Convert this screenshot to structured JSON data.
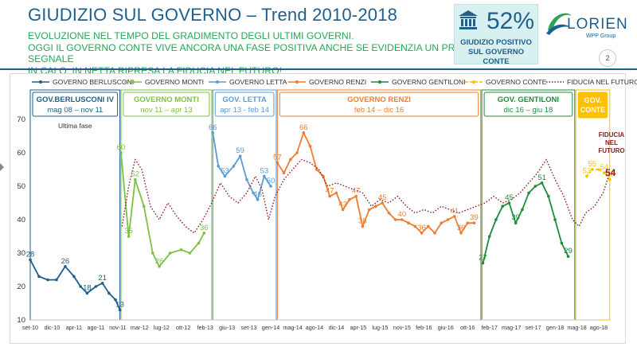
{
  "header": {
    "title": "GIUDIZIO SUL GOVERNO – Trend 2010-2018",
    "subtitle_lines": [
      "EVOLUZIONE NEL TEMPO DEL GRADIMENTO DEGLI ULTIMI GOVERNI.",
      "OGGI IL GOVERNO CONTE VIVE ANCORA UNA FASE POSITIVA ANCHE SE EVIDENZIA UN PRIMO SEGNALE",
      "IN CALO.  IN NETTA RIPRESA LA FIDUCIA NEL FUTURO!"
    ]
  },
  "badge": {
    "percent": "52%",
    "label_line1": "GIUDIZIO POSITIVO",
    "label_line2": "SUL GOVERNO CONTE",
    "icon": "government-building-icon"
  },
  "logo": {
    "name": "LORIEN",
    "group": "WPP Group"
  },
  "page_number": "2",
  "colors": {
    "berlusconi": "#1f5f8b",
    "monti": "#7dc242",
    "letta": "#5b9bd5",
    "renzi": "#ed7d31",
    "gentiloni": "#1e8c3a",
    "conte": "#ffc000",
    "fiducia": "#8b1a1a",
    "title": "#1f5f8b",
    "subtitle": "#2aa556"
  },
  "chart_data": {
    "type": "line",
    "title": "",
    "ylim": [
      10,
      70
    ],
    "yticks": [
      10,
      20,
      30,
      40,
      50,
      60,
      70
    ],
    "xticks": [
      "set-10",
      "dic-10",
      "apr-11",
      "ago-11",
      "nov-11",
      "mar-12",
      "lug-12",
      "ott-12",
      "feb-13",
      "giu-13",
      "set-13",
      "gen-14",
      "mag-14",
      "ago-14",
      "dic-14",
      "apr-15",
      "lug-15",
      "nov-15",
      "feb-16",
      "giu-16",
      "ott-16",
      "feb-17",
      "mag-17",
      "set-17",
      "gen-18",
      "mag-18",
      "ago-18"
    ],
    "legend": [
      {
        "key": "berlusconi",
        "label": "GOVERNO BERLUSCONI",
        "style": "solid"
      },
      {
        "key": "monti",
        "label": "GOVERNO MONTI",
        "style": "solid"
      },
      {
        "key": "letta",
        "label": "GOVERNO LETTA",
        "style": "solid"
      },
      {
        "key": "renzi",
        "label": "GOVERNO RENZI",
        "style": "solid"
      },
      {
        "key": "gentiloni",
        "label": "GOVERNO GENTILONI",
        "style": "solid"
      },
      {
        "key": "conte",
        "label": "GOVERNO CONTE",
        "style": "dashed"
      },
      {
        "key": "fiducia",
        "label": "FIDUCIA NEL FUTURO",
        "style": "dotted"
      }
    ],
    "periods": [
      {
        "key": "berlusconi",
        "name": "GOV.BERLUSCONI IV",
        "dates": "mag 08 – nov 11",
        "note": "Ultima fase",
        "x": [
          0,
          4.1
        ]
      },
      {
        "key": "monti",
        "name": "GOVERNO MONTI",
        "dates": "nov 11 – apr 13",
        "x": [
          4.15,
          8.3
        ]
      },
      {
        "key": "letta",
        "name": "GOV. LETTA",
        "dates": "apr 13 - feb 14",
        "x": [
          8.35,
          11.25
        ]
      },
      {
        "key": "renzi",
        "name": "GOVERNO RENZI",
        "dates": "feb 14 – dic 16",
        "x": [
          11.3,
          20.6
        ]
      },
      {
        "key": "gentiloni",
        "name": "GOV. GENTILONI",
        "dates": "dic 16 – giu 18",
        "x": [
          20.65,
          24.9
        ]
      },
      {
        "key": "conte",
        "name": "GOV. CONTE",
        "dates": "",
        "x": [
          24.95,
          26.5
        ]
      }
    ],
    "series": [
      {
        "key": "berlusconi",
        "values": [
          [
            0,
            28
          ],
          [
            0.4,
            23
          ],
          [
            0.8,
            22
          ],
          [
            1.2,
            22
          ],
          [
            1.6,
            26
          ],
          [
            2.0,
            23
          ],
          [
            2.3,
            20
          ],
          [
            2.6,
            18
          ],
          [
            3.0,
            20
          ],
          [
            3.3,
            21
          ],
          [
            3.6,
            18
          ],
          [
            3.9,
            16
          ],
          [
            4.1,
            13
          ]
        ]
      },
      {
        "key": "monti",
        "values": [
          [
            4.15,
            60
          ],
          [
            4.5,
            35
          ],
          [
            4.8,
            52
          ],
          [
            5.2,
            44
          ],
          [
            5.6,
            30
          ],
          [
            5.9,
            26
          ],
          [
            6.4,
            30
          ],
          [
            6.9,
            31
          ],
          [
            7.3,
            30
          ],
          [
            7.7,
            33
          ],
          [
            7.95,
            36
          ]
        ]
      },
      {
        "key": "letta",
        "values": [
          [
            8.35,
            66
          ],
          [
            8.6,
            56
          ],
          [
            8.9,
            53
          ],
          [
            9.3,
            56
          ],
          [
            9.6,
            59
          ],
          [
            9.9,
            52
          ],
          [
            10.2,
            48
          ],
          [
            10.4,
            46
          ],
          [
            10.7,
            53
          ],
          [
            11.0,
            50
          ]
        ]
      },
      {
        "key": "renzi",
        "values": [
          [
            11.3,
            57
          ],
          [
            11.6,
            54
          ],
          [
            11.9,
            58
          ],
          [
            12.2,
            60
          ],
          [
            12.5,
            66
          ],
          [
            12.8,
            62
          ],
          [
            13.1,
            55
          ],
          [
            13.4,
            53
          ],
          [
            13.7,
            47
          ],
          [
            14.0,
            48
          ],
          [
            14.3,
            43
          ],
          [
            14.6,
            46
          ],
          [
            14.9,
            47
          ],
          [
            15.2,
            38
          ],
          [
            15.5,
            43
          ],
          [
            15.8,
            44
          ],
          [
            16.1,
            45
          ],
          [
            16.4,
            42
          ],
          [
            16.7,
            40
          ],
          [
            17.0,
            40
          ],
          [
            17.3,
            39
          ],
          [
            17.6,
            38
          ],
          [
            17.9,
            36
          ],
          [
            18.2,
            38
          ],
          [
            18.5,
            36
          ],
          [
            18.8,
            39
          ],
          [
            19.1,
            40
          ],
          [
            19.4,
            41
          ],
          [
            19.7,
            36
          ],
          [
            20.0,
            39
          ],
          [
            20.3,
            39
          ]
        ]
      },
      {
        "key": "gentiloni",
        "values": [
          [
            20.7,
            27
          ],
          [
            21.0,
            35
          ],
          [
            21.3,
            40
          ],
          [
            21.6,
            44
          ],
          [
            21.9,
            45
          ],
          [
            22.2,
            39
          ],
          [
            22.5,
            43
          ],
          [
            22.8,
            48
          ],
          [
            23.1,
            50
          ],
          [
            23.4,
            51
          ],
          [
            23.7,
            47
          ],
          [
            24.0,
            40
          ],
          [
            24.3,
            33
          ],
          [
            24.6,
            29
          ]
        ]
      },
      {
        "key": "conte",
        "values": [
          [
            25.45,
            53
          ],
          [
            25.7,
            55
          ],
          [
            26.0,
            55
          ],
          [
            26.25,
            54
          ],
          [
            26.5,
            52
          ]
        ]
      },
      {
        "key": "fiducia",
        "values": [
          [
            4.2,
            38
          ],
          [
            4.5,
            50
          ],
          [
            4.8,
            58
          ],
          [
            5.1,
            55
          ],
          [
            5.5,
            44
          ],
          [
            5.9,
            40
          ],
          [
            6.3,
            45
          ],
          [
            6.7,
            41
          ],
          [
            7.1,
            38
          ],
          [
            7.5,
            36
          ],
          [
            7.9,
            40
          ],
          [
            8.3,
            45
          ],
          [
            8.7,
            51
          ],
          [
            9.1,
            47
          ],
          [
            9.5,
            45
          ],
          [
            9.9,
            48
          ],
          [
            10.3,
            53
          ],
          [
            10.6,
            49
          ],
          [
            10.9,
            40
          ],
          [
            11.2,
            47
          ],
          [
            11.6,
            52
          ],
          [
            12.0,
            55
          ],
          [
            12.4,
            58
          ],
          [
            12.8,
            57
          ],
          [
            13.2,
            55
          ],
          [
            13.6,
            50
          ],
          [
            14.0,
            51
          ],
          [
            14.4,
            50
          ],
          [
            14.8,
            49
          ],
          [
            15.2,
            48
          ],
          [
            15.6,
            44
          ],
          [
            16.0,
            46
          ],
          [
            16.4,
            45
          ],
          [
            16.8,
            47
          ],
          [
            17.2,
            44
          ],
          [
            17.6,
            42
          ],
          [
            18.0,
            43
          ],
          [
            18.4,
            42
          ],
          [
            18.8,
            44
          ],
          [
            19.2,
            43
          ],
          [
            19.6,
            42
          ],
          [
            20.0,
            43
          ],
          [
            20.4,
            44
          ],
          [
            20.8,
            45
          ],
          [
            21.2,
            47
          ],
          [
            21.6,
            45
          ],
          [
            22.0,
            46
          ],
          [
            22.4,
            48
          ],
          [
            22.8,
            51
          ],
          [
            23.2,
            54
          ],
          [
            23.6,
            58
          ],
          [
            24.0,
            52
          ],
          [
            24.4,
            47
          ],
          [
            24.8,
            40
          ],
          [
            25.1,
            38
          ],
          [
            25.4,
            42
          ],
          [
            25.8,
            44
          ],
          [
            26.2,
            48
          ],
          [
            26.5,
            54
          ]
        ]
      }
    ],
    "labels": [
      {
        "key": "berlusconi",
        "x": 0,
        "y": 28,
        "text": "28"
      },
      {
        "key": "berlusconi",
        "x": 1.6,
        "y": 26,
        "text": "26"
      },
      {
        "key": "berlusconi",
        "x": 2.6,
        "y": 18,
        "text": "18"
      },
      {
        "key": "berlusconi",
        "x": 3.3,
        "y": 21,
        "text": "21"
      },
      {
        "key": "berlusconi",
        "x": 4.1,
        "y": 13,
        "text": "13"
      },
      {
        "key": "monti",
        "x": 4.15,
        "y": 60,
        "text": "60"
      },
      {
        "key": "monti",
        "x": 4.5,
        "y": 35,
        "text": "35"
      },
      {
        "key": "monti",
        "x": 4.8,
        "y": 52,
        "text": "52"
      },
      {
        "key": "monti",
        "x": 5.9,
        "y": 26,
        "text": "26"
      },
      {
        "key": "monti",
        "x": 7.95,
        "y": 36,
        "text": "36"
      },
      {
        "key": "letta",
        "x": 8.35,
        "y": 66,
        "text": "66"
      },
      {
        "key": "letta",
        "x": 8.9,
        "y": 53,
        "text": "53"
      },
      {
        "key": "letta",
        "x": 9.6,
        "y": 59,
        "text": "59"
      },
      {
        "key": "letta",
        "x": 10.4,
        "y": 46,
        "text": "46"
      },
      {
        "key": "letta",
        "x": 10.7,
        "y": 53,
        "text": "53"
      },
      {
        "key": "letta",
        "x": 11.0,
        "y": 50,
        "text": "50"
      },
      {
        "key": "renzi",
        "x": 11.3,
        "y": 57,
        "text": "57"
      },
      {
        "key": "renzi",
        "x": 12.5,
        "y": 66,
        "text": "66"
      },
      {
        "key": "renzi",
        "x": 13.7,
        "y": 47,
        "text": "47"
      },
      {
        "key": "renzi",
        "x": 14.3,
        "y": 43,
        "text": "43"
      },
      {
        "key": "renzi",
        "x": 14.9,
        "y": 47,
        "text": "47"
      },
      {
        "key": "renzi",
        "x": 15.2,
        "y": 38,
        "text": "38"
      },
      {
        "key": "renzi",
        "x": 16.1,
        "y": 45,
        "text": "45"
      },
      {
        "key": "renzi",
        "x": 17.0,
        "y": 40,
        "text": "40"
      },
      {
        "key": "renzi",
        "x": 17.9,
        "y": 36,
        "text": "36"
      },
      {
        "key": "renzi",
        "x": 19.4,
        "y": 41,
        "text": "41"
      },
      {
        "key": "renzi",
        "x": 19.7,
        "y": 36,
        "text": "36"
      },
      {
        "key": "renzi",
        "x": 20.3,
        "y": 39,
        "text": "39"
      },
      {
        "key": "gentiloni",
        "x": 20.7,
        "y": 27,
        "text": "27"
      },
      {
        "key": "gentiloni",
        "x": 21.9,
        "y": 45,
        "text": "45"
      },
      {
        "key": "gentiloni",
        "x": 22.2,
        "y": 39,
        "text": "39"
      },
      {
        "key": "gentiloni",
        "x": 23.4,
        "y": 51,
        "text": "51"
      },
      {
        "key": "gentiloni",
        "x": 24.6,
        "y": 29,
        "text": "29"
      },
      {
        "key": "conte",
        "x": 25.45,
        "y": 53,
        "text": "53"
      },
      {
        "key": "conte",
        "x": 25.7,
        "y": 55,
        "text": "55"
      },
      {
        "key": "conte",
        "x": 26.25,
        "y": 54,
        "text": "54"
      },
      {
        "key": "conte",
        "x": 26.5,
        "y": 52,
        "text": "52"
      }
    ],
    "fiducia_annotation": {
      "lines": [
        "FIDUCIA",
        "NEL",
        "FUTURO"
      ],
      "value": "54"
    }
  }
}
